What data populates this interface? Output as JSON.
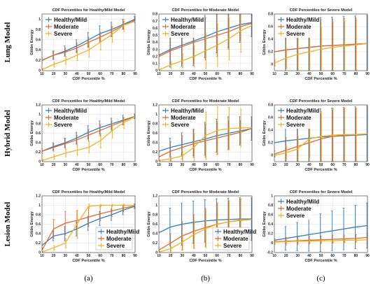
{
  "figure": {
    "row_labels": [
      "Lung Model",
      "Hybrid Model",
      "Lesion Model"
    ],
    "subfigure_labels": [
      "(a)",
      "(b)",
      "(c)"
    ]
  },
  "colors": {
    "healthy": "#2e7fc4",
    "moderate": "#e06a2c",
    "severe": "#f2b21c"
  },
  "chart_data": [
    {
      "type": "line",
      "row": 0,
      "col": 0,
      "title": "CDF Percentiles for Healthy/Mild Model",
      "xlabel": "CDF Percentile %",
      "ylabel": "Gibbs Energy",
      "x": [
        10,
        20,
        30,
        40,
        50,
        60,
        70,
        80,
        90
      ],
      "xlim": [
        10,
        90
      ],
      "ylim": [
        0,
        1.1
      ],
      "yticks": [
        0,
        0.2,
        0.4,
        0.6,
        0.8,
        1
      ],
      "yticklabels": [
        "0",
        "0.2",
        "0.4",
        "0.6",
        "0.8",
        "1"
      ],
      "legend": "top-left",
      "series": [
        {
          "name": "Healthy/Mild",
          "color": "healthy",
          "values": [
            0.2,
            0.3,
            0.38,
            0.48,
            0.6,
            0.72,
            0.8,
            0.9,
            1.0
          ],
          "err": [
            0.05,
            0.08,
            0.1,
            0.12,
            0.14,
            0.15,
            0.14,
            0.1,
            0.05
          ]
        },
        {
          "name": "Moderate",
          "color": "moderate",
          "values": [
            0.2,
            0.3,
            0.36,
            0.44,
            0.55,
            0.65,
            0.76,
            0.88,
            0.98
          ],
          "err": [
            0.05,
            0.08,
            0.08,
            0.1,
            0.1,
            0.1,
            0.1,
            0.08,
            0.05
          ]
        },
        {
          "name": "Severe",
          "color": "severe",
          "values": [
            0.02,
            0.12,
            0.2,
            0.3,
            0.4,
            0.55,
            0.7,
            0.88,
            0.96
          ],
          "err": [
            0.02,
            0.05,
            0.08,
            0.1,
            0.14,
            0.15,
            0.15,
            0.12,
            0.05
          ]
        }
      ]
    },
    {
      "type": "line",
      "row": 0,
      "col": 1,
      "title": "CDF Percentiles for Moderate Model",
      "xlabel": "CDF Percentile %",
      "ylabel": "Gibbs Energy",
      "x": [
        10,
        20,
        30,
        40,
        50,
        60,
        70,
        80,
        90
      ],
      "xlim": [
        10,
        90
      ],
      "ylim": [
        0,
        0.8
      ],
      "yticks": [
        0,
        0.1,
        0.2,
        0.3,
        0.4,
        0.5,
        0.6,
        0.7,
        0.8
      ],
      "yticklabels": [
        "0",
        "0.1",
        "0.2",
        "0.3",
        "0.4",
        "0.5",
        "0.6",
        "0.7",
        "0.8"
      ],
      "legend": "top-left",
      "series": [
        {
          "name": "Healthy/Mild",
          "color": "healthy",
          "values": [
            0.22,
            0.3,
            0.36,
            0.42,
            0.48,
            0.55,
            0.6,
            0.65,
            0.68
          ],
          "err": [
            0.15,
            0.25,
            0.3,
            0.35,
            0.3,
            0.3,
            0.28,
            0.25,
            0.2
          ]
        },
        {
          "name": "Moderate",
          "color": "moderate",
          "values": [
            0.2,
            0.28,
            0.34,
            0.4,
            0.45,
            0.5,
            0.55,
            0.62,
            0.67
          ],
          "err": [
            0.1,
            0.2,
            0.25,
            0.3,
            0.3,
            0.3,
            0.25,
            0.2,
            0.15
          ]
        },
        {
          "name": "Severe",
          "color": "severe",
          "values": [
            0.01,
            0.08,
            0.14,
            0.2,
            0.28,
            0.36,
            0.45,
            0.56,
            0.64
          ],
          "err": [
            0.01,
            0.05,
            0.1,
            0.15,
            0.25,
            0.3,
            0.3,
            0.3,
            0.2
          ]
        }
      ]
    },
    {
      "type": "line",
      "row": 0,
      "col": 2,
      "title": "CDF Percentiles for Severe Model",
      "xlabel": "CDF Percentile %",
      "ylabel": "Gibbs Energy",
      "x": [
        10,
        20,
        30,
        40,
        50,
        60,
        70,
        80,
        90
      ],
      "xlim": [
        10,
        90
      ],
      "ylim": [
        -0.1,
        0.8
      ],
      "yticks": [
        0,
        0.2,
        0.4,
        0.6,
        0.8
      ],
      "yticklabels": [
        "0",
        "0.2",
        "0.4",
        "0.6",
        "0.8"
      ],
      "legend": "top-left",
      "series": [
        {
          "name": "Healthy/Mild",
          "color": "healthy",
          "values": [
            0.2,
            0.23,
            0.25,
            0.27,
            0.29,
            0.3,
            0.31,
            0.32,
            0.33
          ],
          "err": [
            0.2,
            0.35,
            0.4,
            0.45,
            0.45,
            0.45,
            0.45,
            0.45,
            0.45
          ]
        },
        {
          "name": "Moderate",
          "color": "moderate",
          "values": [
            0.2,
            0.23,
            0.25,
            0.27,
            0.29,
            0.3,
            0.31,
            0.32,
            0.33
          ],
          "err": [
            0.15,
            0.3,
            0.35,
            0.4,
            0.42,
            0.42,
            0.42,
            0.42,
            0.42
          ]
        },
        {
          "name": "Severe",
          "color": "severe",
          "values": [
            0.02,
            0.1,
            0.16,
            0.2,
            0.24,
            0.27,
            0.29,
            0.31,
            0.33
          ],
          "err": [
            0.05,
            0.15,
            0.25,
            0.3,
            0.35,
            0.4,
            0.4,
            0.4,
            0.42
          ]
        }
      ]
    },
    {
      "type": "line",
      "row": 1,
      "col": 0,
      "title": "CDF Percentiles for Healthy/Mild Model",
      "xlabel": "CDF Percentile %",
      "ylabel": "Gibbs Energy",
      "x": [
        10,
        20,
        30,
        40,
        50,
        60,
        70,
        80,
        90
      ],
      "xlim": [
        10,
        90
      ],
      "ylim": [
        0,
        1.2
      ],
      "yticks": [
        0,
        0.2,
        0.4,
        0.6,
        0.8,
        1,
        1.2
      ],
      "yticklabels": [
        "0",
        "0.2",
        "0.4",
        "0.6",
        "0.8",
        "1",
        "1.2"
      ],
      "legend": "top-left",
      "series": [
        {
          "name": "Healthy/Mild",
          "color": "healthy",
          "values": [
            0.22,
            0.32,
            0.4,
            0.5,
            0.62,
            0.72,
            0.8,
            0.88,
            0.96
          ],
          "err": [
            0.05,
            0.08,
            0.1,
            0.12,
            0.14,
            0.14,
            0.12,
            0.1,
            0.05
          ]
        },
        {
          "name": "Moderate",
          "color": "moderate",
          "values": [
            0.22,
            0.3,
            0.38,
            0.46,
            0.56,
            0.66,
            0.76,
            0.86,
            0.96
          ],
          "err": [
            0.05,
            0.08,
            0.1,
            0.1,
            0.12,
            0.12,
            0.1,
            0.08,
            0.05
          ]
        },
        {
          "name": "Severe",
          "color": "severe",
          "values": [
            0.02,
            0.1,
            0.18,
            0.24,
            0.3,
            0.44,
            0.65,
            0.82,
            0.95
          ],
          "err": [
            0.02,
            0.05,
            0.08,
            0.1,
            0.12,
            0.15,
            0.15,
            0.12,
            0.05
          ]
        }
      ]
    },
    {
      "type": "line",
      "row": 1,
      "col": 1,
      "title": "CDF Percentiles for Moderate Model",
      "xlabel": "CDF Percentile %",
      "ylabel": "Gibbs Energy",
      "x": [
        10,
        20,
        30,
        40,
        50,
        60,
        70,
        80,
        90
      ],
      "xlim": [
        10,
        90
      ],
      "ylim": [
        0,
        1.2
      ],
      "yticks": [
        0,
        0.2,
        0.4,
        0.6,
        0.8,
        1,
        1.2
      ],
      "yticklabels": [
        "0",
        "0.2",
        "0.4",
        "0.6",
        "0.8",
        "1",
        "1.2"
      ],
      "legend": "top-left",
      "series": [
        {
          "name": "Healthy/Mild",
          "color": "healthy",
          "values": [
            0.22,
            0.3,
            0.36,
            0.42,
            0.48,
            0.55,
            0.6,
            0.65,
            0.7
          ],
          "err": [
            0.1,
            0.2,
            0.25,
            0.3,
            0.35,
            0.35,
            0.35,
            0.3,
            0.25
          ]
        },
        {
          "name": "Moderate",
          "color": "moderate",
          "values": [
            0.1,
            0.22,
            0.3,
            0.38,
            0.44,
            0.5,
            0.56,
            0.62,
            0.7
          ],
          "err": [
            0.1,
            0.2,
            0.25,
            0.3,
            0.35,
            0.35,
            0.3,
            0.25,
            0.2
          ]
        },
        {
          "name": "Severe",
          "color": "severe",
          "values": [
            0.02,
            0.06,
            0.12,
            0.3,
            0.55,
            0.66,
            0.7,
            0.71,
            0.72
          ],
          "err": [
            0.02,
            0.05,
            0.1,
            0.3,
            0.5,
            0.5,
            0.45,
            0.4,
            0.35
          ]
        }
      ]
    },
    {
      "type": "line",
      "row": 1,
      "col": 2,
      "title": "CDF Percentiles for Severe Model",
      "xlabel": "CDF Percentile %",
      "ylabel": "Gibbs Energy",
      "x": [
        10,
        20,
        30,
        40,
        50,
        60,
        70,
        80,
        90
      ],
      "xlim": [
        10,
        90
      ],
      "ylim": [
        -0.1,
        0.8
      ],
      "yticks": [
        0,
        0.2,
        0.4,
        0.6,
        0.8
      ],
      "yticklabels": [
        "0",
        "0.2",
        "0.4",
        "0.6",
        "0.8"
      ],
      "legend": "top-left",
      "series": [
        {
          "name": "Healthy/Mild",
          "color": "healthy",
          "values": [
            0.2,
            0.23,
            0.25,
            0.27,
            0.29,
            0.3,
            0.31,
            0.32,
            0.33
          ],
          "err": [
            0.2,
            0.4,
            0.45,
            0.45,
            0.45,
            0.45,
            0.45,
            0.45,
            0.45
          ]
        },
        {
          "name": "Moderate",
          "color": "moderate",
          "values": [
            0.02,
            0.08,
            0.14,
            0.2,
            0.26,
            0.3,
            0.32,
            0.33,
            0.34
          ],
          "err": [
            0.05,
            0.2,
            0.3,
            0.35,
            0.4,
            0.42,
            0.42,
            0.42,
            0.42
          ]
        },
        {
          "name": "Severe",
          "color": "severe",
          "values": [
            0.0,
            0.04,
            0.1,
            0.26,
            0.3,
            0.32,
            0.33,
            0.33,
            0.34
          ],
          "err": [
            0.02,
            0.1,
            0.2,
            0.3,
            0.4,
            0.42,
            0.42,
            0.42,
            0.42
          ]
        }
      ]
    },
    {
      "type": "line",
      "row": 2,
      "col": 0,
      "title": "CDF Percentiles for Healthy/Mild Model",
      "xlabel": "CDF Percentile %",
      "ylabel": "Gibbs Energy",
      "x": [
        10,
        20,
        30,
        40,
        50,
        60,
        70,
        80,
        90
      ],
      "xlim": [
        10,
        90
      ],
      "ylim": [
        0,
        1.2
      ],
      "yticks": [
        0,
        0.2,
        0.4,
        0.6,
        0.8,
        1,
        1.2
      ],
      "yticklabels": [
        "0",
        "0.2",
        "0.4",
        "0.6",
        "0.8",
        "1",
        "1.2"
      ],
      "legend": "bottom-right",
      "series": [
        {
          "name": "Healthy/Mild",
          "color": "healthy",
          "values": [
            0.15,
            0.35,
            0.4,
            0.5,
            0.62,
            0.72,
            0.8,
            0.9,
            0.98
          ],
          "err": [
            0.05,
            0.1,
            0.15,
            0.15,
            0.15,
            0.15,
            0.12,
            0.1,
            0.05
          ]
        },
        {
          "name": "Moderate",
          "color": "moderate",
          "values": [
            0.05,
            0.5,
            0.62,
            0.68,
            0.75,
            0.82,
            0.88,
            0.94,
            0.99
          ],
          "err": [
            0.05,
            0.2,
            0.25,
            0.2,
            0.2,
            0.15,
            0.12,
            0.08,
            0.03
          ]
        },
        {
          "name": "Severe",
          "color": "severe",
          "values": [
            0.01,
            0.1,
            0.2,
            0.6,
            0.98,
            1.0,
            1.0,
            1.0,
            1.0
          ],
          "err": [
            0.01,
            0.05,
            0.1,
            0.3,
            0.05,
            0.02,
            0.02,
            0.02,
            0.02
          ]
        }
      ]
    },
    {
      "type": "line",
      "row": 2,
      "col": 1,
      "title": "CDF Percentiles for Moderate Model",
      "xlabel": "CDF Percentile %",
      "ylabel": "Gibbs Energy",
      "x": [
        10,
        20,
        30,
        40,
        50,
        60,
        70,
        80,
        90
      ],
      "xlim": [
        10,
        90
      ],
      "ylim": [
        0,
        1.2
      ],
      "yticks": [
        0,
        0.2,
        0.4,
        0.6,
        0.8,
        1,
        1.2
      ],
      "yticklabels": [
        "0",
        "0.2",
        "0.4",
        "0.6",
        "0.8",
        "1",
        "1.2"
      ],
      "legend": "bottom-right",
      "series": [
        {
          "name": "Healthy/Mild",
          "color": "healthy",
          "values": [
            0.42,
            0.54,
            0.6,
            0.64,
            0.67,
            0.69,
            0.7,
            0.71,
            0.71
          ],
          "err": [
            0.3,
            0.4,
            0.45,
            0.45,
            0.45,
            0.45,
            0.45,
            0.45,
            0.45
          ]
        },
        {
          "name": "Moderate",
          "color": "moderate",
          "values": [
            0.05,
            0.2,
            0.35,
            0.45,
            0.53,
            0.6,
            0.65,
            0.68,
            0.7
          ],
          "err": [
            0.05,
            0.2,
            0.3,
            0.35,
            0.4,
            0.45,
            0.45,
            0.45,
            0.45
          ]
        },
        {
          "name": "Severe",
          "color": "severe",
          "values": [
            0.01,
            0.08,
            0.22,
            0.38,
            0.5,
            0.6,
            0.65,
            0.69,
            0.7
          ],
          "err": [
            0.01,
            0.05,
            0.15,
            0.3,
            0.4,
            0.45,
            0.45,
            0.45,
            0.45
          ]
        }
      ]
    },
    {
      "type": "line",
      "row": 2,
      "col": 2,
      "title": "CDF Percentiles for Severe Model",
      "xlabel": "CDF Percentile %",
      "ylabel": "Gibbs Energy",
      "x": [
        10,
        20,
        30,
        40,
        50,
        60,
        70,
        80,
        90
      ],
      "xlim": [
        10,
        90
      ],
      "ylim": [
        -0.2,
        1.0
      ],
      "yticks": [
        -0.2,
        0,
        0.2,
        0.4,
        0.6,
        0.8,
        1
      ],
      "yticklabels": [
        "-0.2",
        "0",
        "0.2",
        "0.4",
        "0.6",
        "0.8",
        "1"
      ],
      "legend": "top-left",
      "series": [
        {
          "name": "Healthy/Mild",
          "color": "healthy",
          "values": [
            0.06,
            0.1,
            0.14,
            0.18,
            0.22,
            0.26,
            0.3,
            0.34,
            0.37
          ],
          "err": [
            0.15,
            0.25,
            0.3,
            0.35,
            0.4,
            0.42,
            0.44,
            0.46,
            0.48
          ]
        },
        {
          "name": "Moderate",
          "color": "moderate",
          "values": [
            0.03,
            0.04,
            0.05,
            0.06,
            0.07,
            0.08,
            0.09,
            0.1,
            0.12
          ],
          "err": [
            0.06,
            0.08,
            0.08,
            0.08,
            0.08,
            0.08,
            0.08,
            0.08,
            0.08
          ]
        },
        {
          "name": "Severe",
          "color": "severe",
          "values": [
            0.02,
            0.03,
            0.04,
            0.04,
            0.05,
            0.05,
            0.06,
            0.06,
            0.07
          ],
          "err": [
            0.03,
            0.04,
            0.04,
            0.04,
            0.04,
            0.04,
            0.04,
            0.04,
            0.04
          ]
        }
      ]
    }
  ]
}
